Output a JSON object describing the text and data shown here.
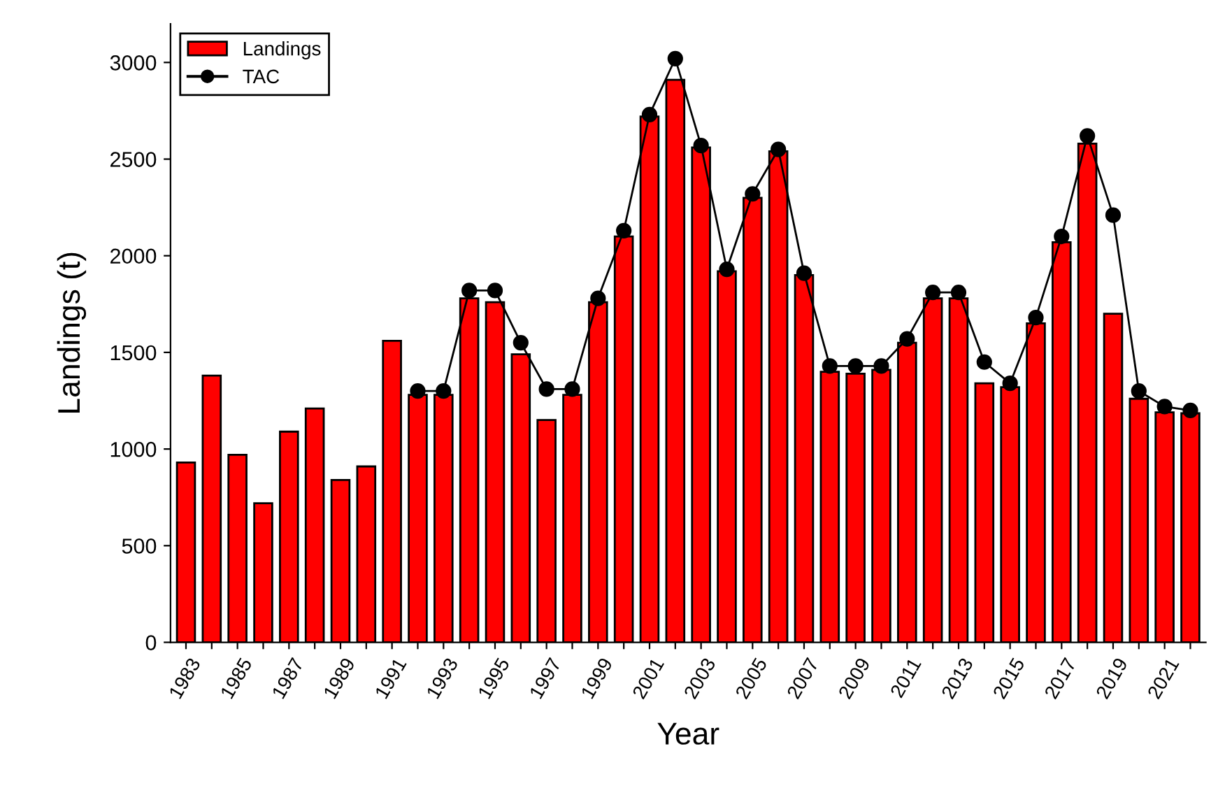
{
  "chart_data": {
    "type": "bar",
    "xlabel": "Year",
    "ylabel": "Landings (t)",
    "categories": [
      "1983",
      null,
      "1985",
      null,
      "1987",
      null,
      "1989",
      null,
      "1991",
      null,
      "1993",
      null,
      "1995",
      null,
      "1997",
      null,
      "1999",
      null,
      "2001",
      null,
      "2003",
      null,
      "2005",
      null,
      "2007",
      null,
      "2009",
      null,
      "2011",
      null,
      "2013",
      null,
      "2015",
      null,
      "2017",
      null,
      "2019",
      null,
      "2021",
      null
    ],
    "series": [
      {
        "name": "Landings",
        "color": "#ff0000",
        "values": [
          930,
          1380,
          970,
          720,
          1090,
          1210,
          840,
          910,
          1560,
          1280,
          1280,
          1780,
          1760,
          1490,
          1150,
          1280,
          1760,
          2100,
          2720,
          2910,
          2560,
          1920,
          2300,
          2540,
          1900,
          1400,
          1390,
          1410,
          1550,
          1780,
          1780,
          1340,
          1320,
          1650,
          2070,
          2580,
          1700,
          1260,
          1190,
          1185
        ]
      },
      {
        "name": "TAC",
        "type": "line",
        "color": "#000000",
        "marker": "circle",
        "values": [
          null,
          null,
          null,
          null,
          null,
          null,
          null,
          null,
          null,
          1300,
          1300,
          1820,
          1820,
          1550,
          1310,
          1310,
          1780,
          2130,
          2730,
          3020,
          2570,
          1930,
          2320,
          2550,
          1910,
          1430,
          1430,
          1430,
          1570,
          1810,
          1810,
          1450,
          1340,
          1680,
          2100,
          2620,
          2210,
          1300,
          1220,
          1200
        ]
      }
    ],
    "ylim": [
      0,
      3200
    ],
    "yticks": [
      0,
      500,
      1000,
      1500,
      2000,
      2500,
      3000
    ],
    "legend": "top left",
    "grid": false
  }
}
